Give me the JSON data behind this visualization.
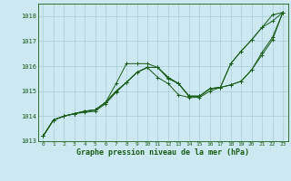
{
  "background_color": "#cce8f0",
  "grid_color": "#aaccd8",
  "line_color": "#1a5c1a",
  "marker": "+",
  "xlabel": "Graphe pression niveau de la mer (hPa)",
  "xlabel_color": "#1a5c1a",
  "ylim": [
    1013.0,
    1018.5
  ],
  "xlim": [
    -0.5,
    23.5
  ],
  "yticks": [
    1013,
    1014,
    1015,
    1016,
    1017,
    1018
  ],
  "xticks": [
    0,
    1,
    2,
    3,
    4,
    5,
    6,
    7,
    8,
    9,
    10,
    11,
    12,
    13,
    14,
    15,
    16,
    17,
    18,
    19,
    20,
    21,
    22,
    23
  ],
  "series": [
    [
      1013.2,
      1013.85,
      1014.0,
      1014.1,
      1014.2,
      1014.25,
      1014.55,
      1015.3,
      1016.1,
      1016.1,
      1016.1,
      1015.95,
      1015.5,
      1015.3,
      1014.8,
      1014.8,
      1015.1,
      1015.15,
      1016.1,
      1016.6,
      1017.05,
      1017.55,
      1018.05,
      1018.15
    ],
    [
      1013.2,
      1013.85,
      1014.0,
      1014.1,
      1014.2,
      1014.25,
      1014.55,
      1015.0,
      1015.35,
      1015.75,
      1015.95,
      1015.95,
      1015.55,
      1015.3,
      1014.8,
      1014.8,
      1015.1,
      1015.15,
      1016.1,
      1016.6,
      1017.05,
      1017.55,
      1017.8,
      1018.15
    ],
    [
      1013.2,
      1013.85,
      1014.0,
      1014.1,
      1014.2,
      1014.25,
      1014.55,
      1015.0,
      1015.35,
      1015.75,
      1015.95,
      1015.95,
      1015.55,
      1015.3,
      1014.8,
      1014.8,
      1015.1,
      1015.15,
      1015.25,
      1015.4,
      1015.85,
      1016.55,
      1017.15,
      1018.15
    ],
    [
      1013.2,
      1013.85,
      1014.0,
      1014.1,
      1014.15,
      1014.2,
      1014.5,
      1014.95,
      1015.35,
      1015.75,
      1015.95,
      1015.55,
      1015.3,
      1014.85,
      1014.75,
      1014.75,
      1015.0,
      1015.15,
      1015.25,
      1015.4,
      1015.85,
      1016.45,
      1017.05,
      1018.15
    ]
  ]
}
